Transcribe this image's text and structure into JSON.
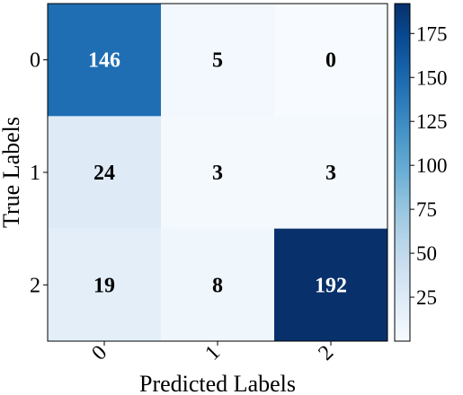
{
  "chart_data": {
    "type": "heatmap",
    "title": "",
    "xlabel": "Predicted Labels",
    "ylabel": "True Labels",
    "x_categories": [
      "0",
      "1",
      "2"
    ],
    "y_categories": [
      "0",
      "1",
      "2"
    ],
    "values": [
      [
        146,
        5,
        0
      ],
      [
        24,
        3,
        3
      ],
      [
        19,
        8,
        192
      ]
    ],
    "colormap": "Blues",
    "colorbar": {
      "range": [
        0,
        192
      ],
      "ticks": [
        25,
        50,
        75,
        100,
        125,
        150,
        175
      ],
      "tick_labels": [
        "25",
        "50",
        "75",
        "100",
        "125",
        "150",
        "175"
      ]
    },
    "colors": {
      "high": "#08306b",
      "low": "#f7fbff",
      "annotation_text": "#000000",
      "annotation_text_on_dark": "#ffffff"
    }
  }
}
